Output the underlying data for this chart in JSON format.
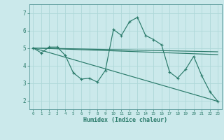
{
  "background_color": "#cbe9eb",
  "grid_color": "#aed8d8",
  "line_color": "#2a7a6a",
  "xlabel": "Humidex (Indice chaleur)",
  "ylim": [
    1.5,
    7.5
  ],
  "xlim": [
    -0.5,
    23.5
  ],
  "yticks": [
    2,
    3,
    4,
    5,
    6,
    7
  ],
  "xticks": [
    0,
    1,
    2,
    3,
    4,
    5,
    6,
    7,
    8,
    9,
    10,
    11,
    12,
    13,
    14,
    15,
    16,
    17,
    18,
    19,
    20,
    21,
    22,
    23
  ],
  "series_main": {
    "x": [
      0,
      1,
      2,
      3,
      4,
      5,
      6,
      7,
      8,
      9,
      10,
      11,
      12,
      13,
      14,
      15,
      16,
      17,
      18,
      19,
      20,
      21,
      22,
      23
    ],
    "y": [
      5.0,
      4.72,
      5.05,
      5.05,
      4.58,
      3.58,
      3.22,
      3.27,
      3.05,
      3.72,
      6.05,
      5.72,
      6.5,
      6.75,
      5.72,
      5.48,
      5.18,
      3.62,
      3.28,
      3.78,
      4.52,
      3.42,
      2.52,
      1.95
    ]
  },
  "series_lines": [
    {
      "x": [
        0,
        23
      ],
      "y": [
        5.0,
        1.95
      ]
    },
    {
      "x": [
        0,
        23
      ],
      "y": [
        5.0,
        4.78
      ]
    },
    {
      "x": [
        0,
        23
      ],
      "y": [
        5.0,
        4.62
      ]
    }
  ]
}
